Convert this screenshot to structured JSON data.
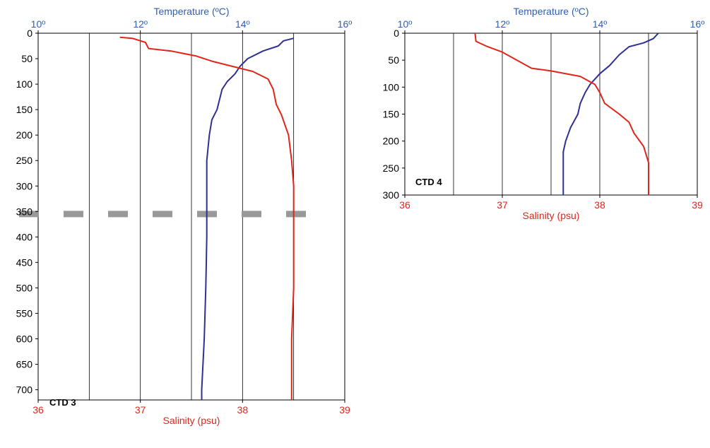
{
  "colors": {
    "temperature": "#2e3192",
    "salinity": "#e0251b",
    "axis": "#000000",
    "grid": "#000000",
    "temperature_axis_text": "#2f5fb0",
    "salinity_axis_text": "#e0251b",
    "dash_marker": "#999999"
  },
  "chart_data": [
    {
      "type": "line",
      "label": "CTD 3",
      "x_top": {
        "label": "Temperature (ºC)",
        "min": 10,
        "max": 16,
        "ticks": [
          {
            "value": 10,
            "label": "10º"
          },
          {
            "value": 12,
            "label": "12º"
          },
          {
            "value": 14,
            "label": "14º"
          },
          {
            "value": 16,
            "label": "16º"
          }
        ]
      },
      "x_bottom": {
        "label": "Salinity (psu)",
        "min": 36,
        "max": 39,
        "ticks": [
          {
            "value": 36,
            "label": "36"
          },
          {
            "value": 37,
            "label": "37"
          },
          {
            "value": 38,
            "label": "38"
          },
          {
            "value": 39,
            "label": "39"
          }
        ]
      },
      "y": {
        "min": 0,
        "max": 720,
        "inverted": true,
        "ticks": [
          0,
          50,
          100,
          150,
          200,
          250,
          300,
          350,
          400,
          450,
          500,
          550,
          600,
          650,
          700
        ]
      },
      "grid_x_salinity": [
        36.5,
        37,
        37.5,
        38,
        38.5
      ],
      "dashed_marker_depth": 355,
      "series": [
        {
          "axis": "temperature",
          "points": [
            [
              15.0,
              10
            ],
            [
              14.8,
              15
            ],
            [
              14.7,
              25
            ],
            [
              14.4,
              35
            ],
            [
              14.1,
              50
            ],
            [
              13.95,
              65
            ],
            [
              13.85,
              80
            ],
            [
              13.7,
              95
            ],
            [
              13.6,
              110
            ],
            [
              13.55,
              130
            ],
            [
              13.5,
              150
            ],
            [
              13.4,
              170
            ],
            [
              13.35,
              200
            ],
            [
              13.3,
              250
            ],
            [
              13.3,
              300
            ],
            [
              13.3,
              400
            ],
            [
              13.28,
              500
            ],
            [
              13.25,
              600
            ],
            [
              13.2,
              700
            ],
            [
              13.2,
              720
            ]
          ]
        },
        {
          "axis": "salinity",
          "points": [
            [
              36.8,
              8
            ],
            [
              36.92,
              10
            ],
            [
              37.05,
              18
            ],
            [
              37.08,
              30
            ],
            [
              37.3,
              35
            ],
            [
              37.55,
              45
            ],
            [
              37.7,
              55
            ],
            [
              37.9,
              65
            ],
            [
              38.1,
              75
            ],
            [
              38.25,
              90
            ],
            [
              38.3,
              110
            ],
            [
              38.33,
              140
            ],
            [
              38.38,
              160
            ],
            [
              38.45,
              200
            ],
            [
              38.48,
              250
            ],
            [
              38.5,
              300
            ],
            [
              38.5,
              400
            ],
            [
              38.5,
              500
            ],
            [
              38.48,
              600
            ],
            [
              38.48,
              720
            ]
          ]
        }
      ]
    },
    {
      "type": "line",
      "label": "CTD 4",
      "x_top": {
        "label": "Temperature (ºC)",
        "min": 10,
        "max": 16,
        "ticks": [
          {
            "value": 10,
            "label": "10º"
          },
          {
            "value": 12,
            "label": "12º"
          },
          {
            "value": 14,
            "label": "14º"
          },
          {
            "value": 16,
            "label": "16º"
          }
        ]
      },
      "x_bottom": {
        "label": "Salinity (psu)",
        "min": 36,
        "max": 39,
        "ticks": [
          {
            "value": 36,
            "label": "36"
          },
          {
            "value": 37,
            "label": "37"
          },
          {
            "value": 38,
            "label": "38"
          },
          {
            "value": 39,
            "label": "39"
          }
        ]
      },
      "y": {
        "min": 0,
        "max": 300,
        "inverted": true,
        "ticks": [
          0,
          50,
          100,
          150,
          200,
          250,
          300
        ]
      },
      "grid_x_salinity": [
        36.5,
        37,
        37.5,
        38,
        38.5
      ],
      "series": [
        {
          "axis": "temperature",
          "points": [
            [
              15.2,
              0
            ],
            [
              15.1,
              10
            ],
            [
              14.9,
              18
            ],
            [
              14.6,
              25
            ],
            [
              14.4,
              40
            ],
            [
              14.2,
              60
            ],
            [
              14.0,
              75
            ],
            [
              13.9,
              85
            ],
            [
              13.8,
              95
            ],
            [
              13.7,
              110
            ],
            [
              13.6,
              130
            ],
            [
              13.55,
              150
            ],
            [
              13.4,
              175
            ],
            [
              13.3,
              200
            ],
            [
              13.25,
              220
            ],
            [
              13.25,
              300
            ]
          ]
        },
        {
          "axis": "salinity",
          "points": [
            [
              36.72,
              0
            ],
            [
              36.73,
              15
            ],
            [
              36.85,
              25
            ],
            [
              37.0,
              35
            ],
            [
              37.2,
              55
            ],
            [
              37.3,
              65
            ],
            [
              37.5,
              70
            ],
            [
              37.8,
              80
            ],
            [
              37.95,
              95
            ],
            [
              38.0,
              110
            ],
            [
              38.05,
              130
            ],
            [
              38.2,
              150
            ],
            [
              38.3,
              165
            ],
            [
              38.35,
              185
            ],
            [
              38.45,
              210
            ],
            [
              38.5,
              240
            ],
            [
              38.5,
              300
            ]
          ]
        }
      ]
    }
  ]
}
